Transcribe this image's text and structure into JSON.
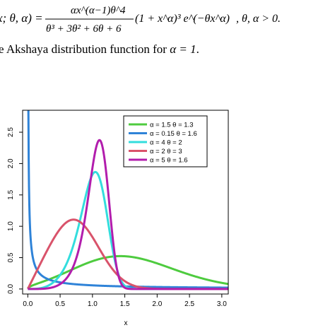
{
  "equation": {
    "lhs": "x; θ, α) =",
    "numerator": "αx^(α−1)θ^4",
    "denominator": "θ³ + 3θ² + 6θ + 6",
    "factor": "(1 + x^α)³ e^(−θx^α)",
    "condition": ", θ, α > 0."
  },
  "caption": {
    "prefix": "e Akshaya distribution function for ",
    "math": "α = 1",
    "suffix": "."
  },
  "chart_data": {
    "type": "line",
    "xlabel": "x",
    "ylabel": "",
    "xlim": [
      -0.08,
      3.1
    ],
    "ylim": [
      -0.08,
      2.85
    ],
    "xticks": [
      "0.0",
      "0.5",
      "1.0",
      "1.5",
      "2.0",
      "2.5",
      "3.0"
    ],
    "yticks": [
      "0.0",
      "0.5",
      "1.0",
      "1.5",
      "2.0",
      "2.5"
    ],
    "legend_position": "top-right",
    "series": [
      {
        "name": "α = 1.5  θ = 1.3",
        "alpha": 1.5,
        "theta": 1.3,
        "color": "#4ecb3f"
      },
      {
        "name": "α = 0.15  θ = 1.6",
        "alpha": 0.15,
        "theta": 1.6,
        "color": "#2f83d8"
      },
      {
        "name": "α = 4  θ = 2",
        "alpha": 4,
        "theta": 2,
        "color": "#33dddd"
      },
      {
        "name": "α = 2  θ = 3",
        "alpha": 2,
        "theta": 3,
        "color": "#d9536b"
      },
      {
        "name": "α = 5  θ = 1.6",
        "alpha": 5,
        "theta": 1.6,
        "color": "#b21dad"
      }
    ]
  }
}
